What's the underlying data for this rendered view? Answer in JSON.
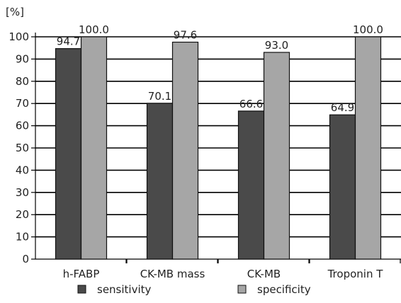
{
  "chart_data": {
    "type": "bar",
    "ylabel": "[%]",
    "ylim": [
      0,
      100
    ],
    "ytick_step": 10,
    "grid": true,
    "legend_position": "bottom",
    "categories": [
      "h-FABP",
      "CK-MB mass",
      "CK-MB",
      "Troponin T"
    ],
    "series": [
      {
        "name": "sensitivity",
        "values": [
          94.7,
          70.1,
          66.6,
          64.9
        ],
        "labels": [
          "94.7",
          "70.1",
          "66.6",
          "64.9"
        ],
        "color": "#4a4a4a"
      },
      {
        "name": "specificity",
        "values": [
          100.0,
          97.6,
          93.0,
          100.0
        ],
        "labels": [
          "100.0",
          "97.6",
          "93.0",
          "100.0"
        ],
        "color": "#a6a6a6"
      }
    ]
  }
}
